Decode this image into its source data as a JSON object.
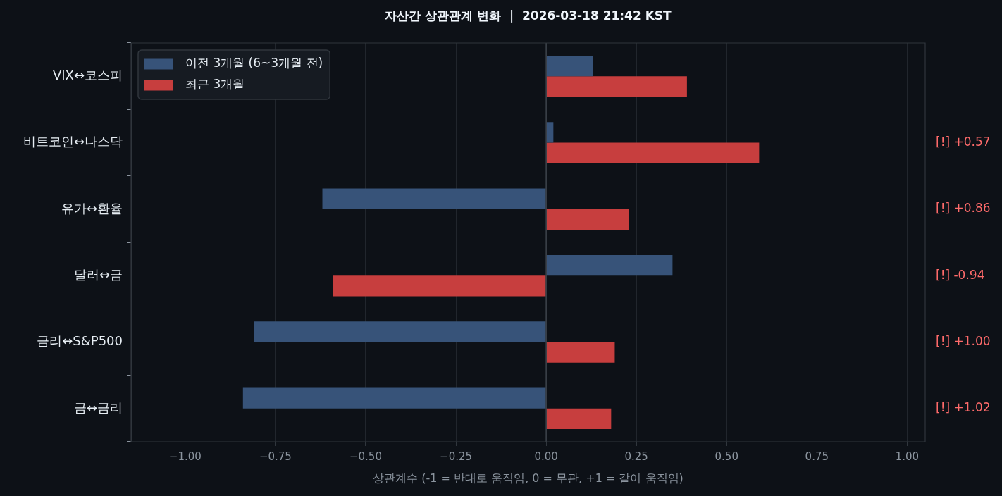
{
  "chart_data": {
    "type": "bar",
    "orientation": "horizontal",
    "title": "자산간 상관관계 변화  |  2026-03-18 21:42 KST",
    "xlabel": "상관계수 (-1 = 반대로 움직임, 0 = 무관, +1 = 같이 움직임)",
    "categories": [
      "VIX↔코스피",
      "비트코인↔나스닥",
      "유가↔환율",
      "달러↔금",
      "금리↔S&P500",
      "금↔금리"
    ],
    "series": [
      {
        "name": "이전 3개월 (6~3개월 전)",
        "color": "#375379",
        "values": [
          0.13,
          0.02,
          -0.62,
          0.35,
          -0.81,
          -0.84
        ]
      },
      {
        "name": "최근 3개월",
        "color": "#c73e3e",
        "values": [
          0.39,
          0.59,
          0.23,
          -0.59,
          0.19,
          0.18
        ]
      }
    ],
    "xlim": [
      -1.15,
      1.05
    ],
    "xticks": [
      {
        "value": -1,
        "label": "−1.00"
      },
      {
        "value": -0.75,
        "label": "−0.75"
      },
      {
        "value": -0.5,
        "label": "−0.50"
      },
      {
        "value": -0.25,
        "label": "−0.25"
      },
      {
        "value": 0,
        "label": "0.00"
      },
      {
        "value": 0.25,
        "label": "0.25"
      },
      {
        "value": 0.5,
        "label": "0.50"
      },
      {
        "value": 0.75,
        "label": "0.75"
      },
      {
        "value": 1,
        "label": "1.00"
      }
    ],
    "grid": "x",
    "legend": "top left",
    "ref_lines": [
      {
        "axis": "x",
        "value": 0,
        "color": "#3d434b"
      }
    ],
    "annotations": [
      "[!] +0.57",
      "[!] +0.86",
      "[!] -0.94",
      "[!] +1.00",
      "[!] +1.02"
    ]
  }
}
